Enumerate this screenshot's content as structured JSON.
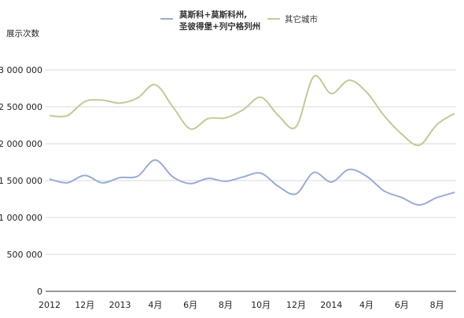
{
  "chart_data": {
    "type": "line",
    "ylabel": "展示次数",
    "ylim": [
      0,
      3000000
    ],
    "yticks": [
      0,
      500000,
      1000000,
      1500000,
      2000000,
      2500000,
      3000000
    ],
    "ytick_labels": [
      "0",
      "500 000",
      "1 000 000",
      "1 500 000",
      "2 000 000",
      "2 500 000",
      "3 000 000"
    ],
    "x_tick_labels": [
      "2012",
      "12月",
      "2013",
      "4月",
      "6月",
      "8月",
      "10月",
      "12月",
      "2014",
      "4月",
      "6月",
      "8月"
    ],
    "x_tick_months": [
      0,
      2,
      4,
      6,
      8,
      10,
      12,
      14,
      16,
      18,
      20,
      22
    ],
    "x_months": [
      0,
      1,
      2,
      3,
      4,
      5,
      6,
      7,
      8,
      9,
      10,
      11,
      12,
      13,
      14,
      15,
      16,
      17,
      18,
      19,
      20,
      21,
      22,
      23
    ],
    "grid": "horizontal",
    "legend_position": "top",
    "series": [
      {
        "name_lines": [
          "莫斯科+莫斯科州,",
          "圣彼得堡+列宁格列州"
        ],
        "color": "#98acd6",
        "values": [
          1520000,
          1470000,
          1570000,
          1470000,
          1540000,
          1560000,
          1780000,
          1550000,
          1460000,
          1530000,
          1490000,
          1550000,
          1600000,
          1420000,
          1320000,
          1610000,
          1480000,
          1650000,
          1560000,
          1360000,
          1270000,
          1170000,
          1270000,
          1340000
        ]
      },
      {
        "name_lines": [
          "其它城市"
        ],
        "color": "#c5c896",
        "values": [
          2380000,
          2380000,
          2570000,
          2590000,
          2550000,
          2620000,
          2800000,
          2500000,
          2200000,
          2340000,
          2350000,
          2460000,
          2630000,
          2380000,
          2230000,
          2910000,
          2680000,
          2860000,
          2700000,
          2380000,
          2130000,
          1980000,
          2260000,
          2410000
        ]
      }
    ]
  }
}
